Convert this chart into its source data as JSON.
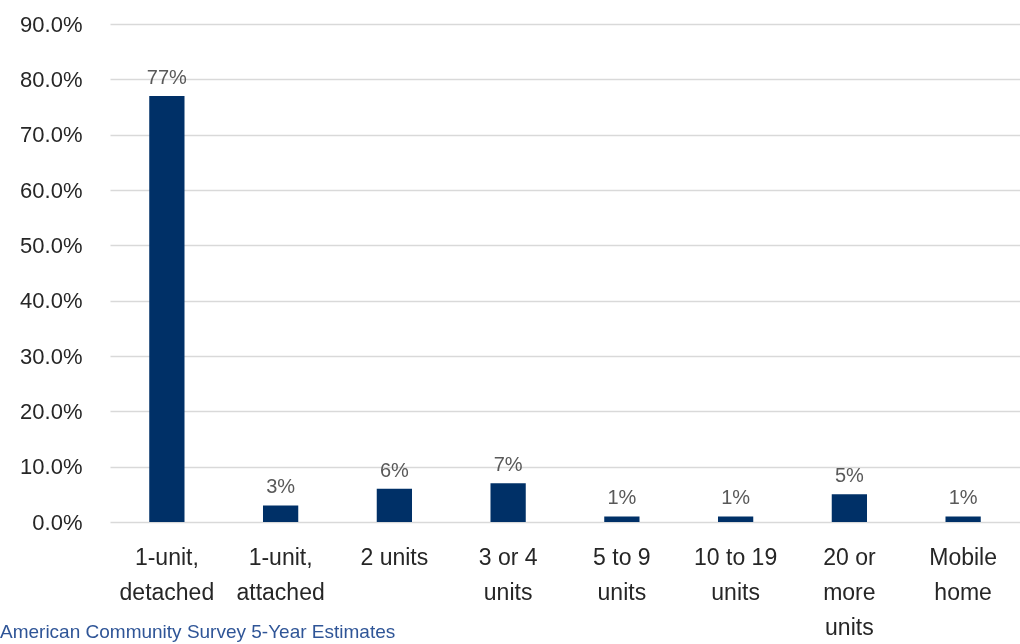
{
  "chart_data": {
    "type": "bar",
    "categories": [
      "1-unit, detached",
      "1-unit, attached",
      "2 units",
      "3 or 4 units",
      "5 to 9 units",
      "10 to 19 units",
      "20 or more units",
      "Mobile home"
    ],
    "values": [
      77,
      3,
      6,
      7,
      1,
      1,
      5,
      1
    ],
    "value_labels": [
      "77%",
      "3%",
      "6%",
      "7%",
      "1%",
      "1%",
      "5%",
      "1%"
    ],
    "color": "#003067",
    "ylim": [
      0,
      90
    ],
    "yticks": [
      {
        "value": 0,
        "label": "0.0%"
      },
      {
        "value": 10,
        "label": "10.0%"
      },
      {
        "value": 20,
        "label": "20.0%"
      },
      {
        "value": 30,
        "label": "30.0%"
      },
      {
        "value": 40,
        "label": "40.0%"
      },
      {
        "value": 50,
        "label": "50.0%"
      },
      {
        "value": 60,
        "label": "60.0%"
      },
      {
        "value": 70,
        "label": "70.0%"
      },
      {
        "value": 80,
        "label": "80.0%"
      },
      {
        "value": 90,
        "label": "90.0%"
      }
    ],
    "grid": "y",
    "annotations": [
      "American Community Survey 5-Year Estimates"
    ]
  }
}
